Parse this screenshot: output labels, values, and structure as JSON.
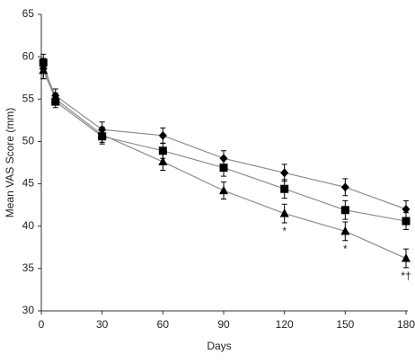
{
  "chart_data": {
    "type": "line",
    "x_label": "Days",
    "y_label": "Mean VAS Score (mm)",
    "x": [
      1,
      7,
      30,
      60,
      90,
      120,
      150,
      180
    ],
    "series": [
      {
        "marker": "diamond",
        "color": "#000000",
        "line_color": "#8c8c8c",
        "values": [
          58.6,
          55.4,
          51.4,
          50.7,
          48.0,
          46.3,
          44.6,
          42.0
        ],
        "errors": [
          1.2,
          0.8,
          0.9,
          0.9,
          0.9,
          1.0,
          1.0,
          1.0
        ]
      },
      {
        "marker": "square",
        "color": "#000000",
        "line_color": "#8c8c8c",
        "values": [
          59.3,
          54.7,
          50.6,
          48.9,
          46.9,
          44.4,
          41.9,
          40.6
        ],
        "errors": [
          1.0,
          0.7,
          0.9,
          0.9,
          1.0,
          1.1,
          1.1,
          1.0
        ]
      },
      {
        "marker": "triangle",
        "color": "#000000",
        "line_color": "#8c8c8c",
        "values": [
          58.4,
          55.0,
          50.8,
          47.6,
          44.2,
          41.5,
          39.4,
          36.2
        ],
        "errors": [
          1.0,
          0.7,
          0.9,
          1.0,
          1.0,
          1.1,
          1.1,
          1.1
        ],
        "annotations": [
          null,
          null,
          null,
          null,
          null,
          "*",
          "*",
          "*†"
        ]
      }
    ],
    "xlim": [
      0,
      180
    ],
    "xticks": [
      0,
      30,
      60,
      90,
      120,
      150,
      180
    ],
    "ylim": [
      30,
      65
    ],
    "yticks": [
      30,
      35,
      40,
      45,
      50,
      55,
      60,
      65
    ]
  }
}
